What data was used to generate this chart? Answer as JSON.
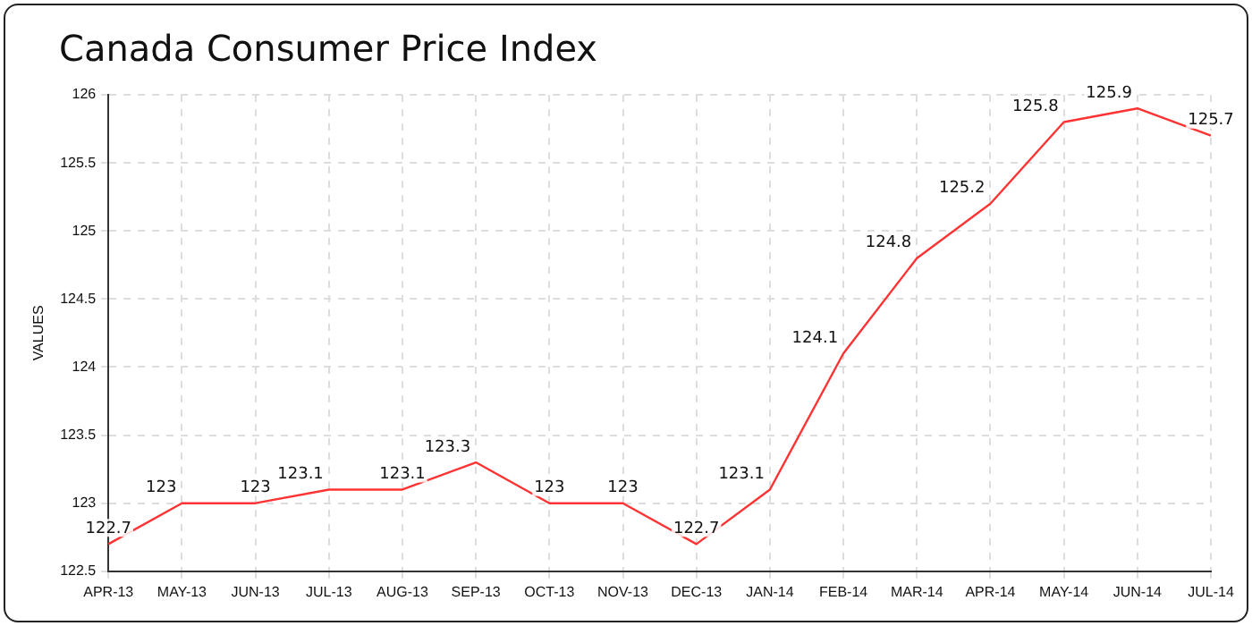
{
  "chart_data": {
    "type": "line",
    "title": "Canada Consumer Price Index",
    "ylabel": "VALUES",
    "categories": [
      "APR-13",
      "MAY-13",
      "JUN-13",
      "JUL-13",
      "AUG-13",
      "SEP-13",
      "OCT-13",
      "NOV-13",
      "DEC-13",
      "JAN-14",
      "FEB-14",
      "MAR-14",
      "APR-14",
      "MAY-14",
      "JUN-14",
      "JUL-14"
    ],
    "series": [
      {
        "color": "#ff3333",
        "values": [
          122.7,
          123,
          123,
          123.1,
          123.1,
          123.3,
          123,
          123,
          122.7,
          123.1,
          124.1,
          124.8,
          125.2,
          125.8,
          125.9,
          125.7
        ]
      }
    ],
    "ylim": [
      122.5,
      126
    ],
    "yticks": [
      122.5,
      123,
      123.5,
      124,
      124.5,
      125,
      125.5,
      126
    ],
    "grid": true,
    "legend": false,
    "marker": "none",
    "line_style": "solid",
    "data_labels": true
  }
}
